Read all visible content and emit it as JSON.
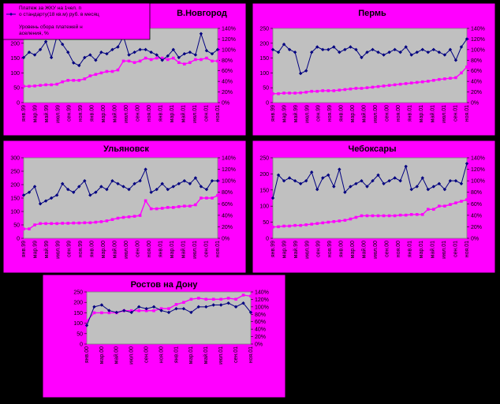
{
  "legend": {
    "series1": "Платеж за ЖКУ на 1чел. по стандарту(18 кв.м) руб. в месяц",
    "series2": "Уровень сбора платежей населения, %"
  },
  "y_left_ticks": [
    "0",
    "50",
    "100",
    "150",
    "200",
    "250"
  ],
  "y_right_ticks": [
    "0%",
    "20%",
    "40%",
    "60%",
    "80%",
    "100%",
    "120%",
    "140%"
  ],
  "colors": {
    "panel": "#ff00ff",
    "plot": "#c0c0c0",
    "series1": "#000080",
    "series2": "#ff00ff",
    "background": "#000000"
  },
  "chart_data": [
    {
      "type": "line",
      "title": "В.Новгород",
      "ylim": [
        0,
        250
      ],
      "y2lim": [
        0,
        1.4
      ],
      "x_tick_labels": [
        "янв.99",
        "мар.99",
        "май.99",
        "июл.99",
        "сен.99",
        "ноя.99",
        "янв.00",
        "мар.00",
        "май.00",
        "июл.00",
        "сен.00",
        "ноя.00",
        "янв.01",
        "мар.01",
        "май.01",
        "июл.01",
        "сен.01",
        "ноя.01"
      ],
      "series": [
        {
          "name": "Платеж за ЖКУ на 1чел. по стандарту(18 кв.м) руб. в месяц",
          "axis": "left",
          "values": [
            55,
            55,
            56,
            58,
            60,
            60,
            62,
            70,
            75,
            75,
            75,
            80,
            90,
            95,
            100,
            105,
            105,
            110,
            140,
            140,
            135,
            140,
            150,
            145,
            150,
            150,
            145,
            150,
            135,
            130,
            135,
            145,
            145,
            150,
            140,
            140
          ]
        },
        {
          "name": "Уровень сбора платежей населения, %",
          "axis": "right",
          "values": [
            0.85,
            0.95,
            0.9,
            1.0,
            1.15,
            0.85,
            1.25,
            1.1,
            0.95,
            0.75,
            0.7,
            0.85,
            0.9,
            0.8,
            0.95,
            0.92,
            1.0,
            1.05,
            1.25,
            0.9,
            0.95,
            1.0,
            1.0,
            0.95,
            0.9,
            0.8,
            0.88,
            1.0,
            0.85,
            0.92,
            0.95,
            0.9,
            1.3,
            0.98,
            0.92,
            1.0
          ]
        }
      ]
    },
    {
      "type": "line",
      "title": "Пермь",
      "ylim": [
        0,
        250
      ],
      "y2lim": [
        0,
        1.4
      ],
      "x_tick_labels": [
        "янв.99",
        "мар.99",
        "май.99",
        "июл.99",
        "сен.99",
        "ноя.99",
        "янв.00",
        "мар.00",
        "май.00",
        "июл.00",
        "сен.00",
        "ноя.00",
        "янв.01",
        "мар.01",
        "май.01",
        "июл.01",
        "сен.01",
        "ноя.01"
      ],
      "series": [
        {
          "name": "Платеж за ЖКУ на 1чел. по стандарту(18 кв.м) руб. в месяц",
          "axis": "left",
          "values": [
            30,
            30,
            32,
            32,
            32,
            33,
            35,
            38,
            38,
            40,
            40,
            40,
            42,
            44,
            46,
            48,
            48,
            50,
            52,
            54,
            56,
            58,
            60,
            62,
            64,
            66,
            68,
            70,
            72,
            75,
            78,
            80,
            82,
            84,
            100,
            120
          ]
        },
        {
          "name": "Уровень сбора платежей населения, %",
          "axis": "right",
          "values": [
            1.0,
            0.95,
            1.1,
            1.0,
            0.95,
            0.55,
            0.6,
            0.95,
            1.05,
            1.0,
            1.0,
            1.05,
            0.95,
            1.0,
            1.05,
            1.0,
            0.85,
            0.95,
            1.0,
            0.95,
            0.9,
            0.95,
            1.0,
            0.95,
            1.05,
            0.9,
            0.95,
            1.0,
            0.95,
            1.0,
            0.95,
            0.9,
            1.0,
            0.8,
            1.05,
            1.2
          ]
        }
      ]
    },
    {
      "type": "line",
      "title": "Ульяновск",
      "ylim": [
        0,
        300
      ],
      "y2lim": [
        0,
        1.4
      ],
      "x_tick_labels": [
        "янв.99",
        "мар.99",
        "май.99",
        "июл.99",
        "сен.99",
        "ноя.99",
        "янв.00",
        "мар.00",
        "май.00",
        "июл.00",
        "сен.00",
        "ноя.00",
        "янв.01",
        "мар.01",
        "май.01",
        "июл.01",
        "сен.01",
        "ноя.01"
      ],
      "series": [
        {
          "name": "Платеж за ЖКУ на 1чел. по стандарту(18 кв.м) руб. в месяц",
          "axis": "left",
          "values": [
            35,
            35,
            50,
            55,
            55,
            55,
            55,
            56,
            56,
            57,
            57,
            58,
            58,
            60,
            62,
            65,
            70,
            75,
            78,
            80,
            82,
            85,
            140,
            110,
            110,
            112,
            115,
            115,
            118,
            120,
            120,
            125,
            150,
            150,
            150,
            160
          ]
        },
        {
          "name": "Уровень сбора платежей населения, %",
          "axis": "right",
          "values": [
            0.75,
            0.8,
            0.9,
            0.6,
            0.65,
            0.7,
            0.75,
            0.95,
            0.85,
            0.8,
            0.9,
            1.0,
            0.75,
            0.8,
            0.9,
            0.85,
            1.0,
            0.95,
            0.9,
            0.85,
            0.95,
            1.0,
            1.2,
            0.8,
            0.85,
            0.95,
            0.85,
            0.9,
            0.95,
            1.0,
            0.95,
            1.05,
            0.9,
            0.85,
            1.0,
            1.0
          ]
        }
      ]
    },
    {
      "type": "line",
      "title": "Чебоксары",
      "ylim": [
        0,
        250
      ],
      "y2lim": [
        0,
        1.4
      ],
      "x_tick_labels": [
        "янв.99",
        "мар.99",
        "май.99",
        "июл.99",
        "сен.99",
        "ноя.99",
        "янв.00",
        "мар.00",
        "май.00",
        "июл.00",
        "сен.00",
        "ноя.00",
        "янв.01",
        "мар.01",
        "май.01",
        "июл.01",
        "сен.01",
        "ноя.01"
      ],
      "series": [
        {
          "name": "Платеж за ЖКУ на 1чел. по стандарту(18 кв.м) руб. в месяц",
          "axis": "left",
          "values": [
            35,
            36,
            38,
            38,
            40,
            40,
            42,
            44,
            46,
            48,
            50,
            52,
            54,
            56,
            60,
            65,
            70,
            70,
            70,
            70,
            70,
            70,
            70,
            72,
            72,
            74,
            74,
            74,
            90,
            90,
            100,
            100,
            105,
            110,
            115,
            120
          ]
        },
        {
          "name": "Уровень сбора платежей населения, %",
          "axis": "right",
          "values": [
            0.7,
            1.1,
            1.0,
            1.05,
            1.0,
            0.95,
            1.0,
            1.15,
            0.85,
            1.05,
            1.1,
            0.9,
            1.2,
            0.8,
            0.9,
            0.95,
            1.0,
            0.9,
            1.0,
            1.1,
            0.95,
            1.0,
            1.05,
            1.0,
            1.25,
            0.85,
            0.9,
            1.05,
            0.85,
            0.9,
            0.95,
            0.85,
            1.0,
            1.0,
            0.95,
            1.3
          ]
        }
      ]
    },
    {
      "type": "line",
      "title": "Ростов на Дону",
      "ylim": [
        0,
        250
      ],
      "y2lim": [
        0,
        1.4
      ],
      "x_tick_labels": [
        "янв.00",
        "мар.00",
        "май.00",
        "июл.00",
        "сен.00",
        "ноя.00",
        "янв.01",
        "мар.01",
        "май.01",
        "июл.01",
        "сен.01",
        "ноя.01"
      ],
      "series": [
        {
          "name": "Платеж за ЖКУ на 1чел. по стандарту(18 кв.м) руб. в месяц",
          "axis": "left",
          "values": [
            110,
            150,
            150,
            150,
            150,
            160,
            160,
            160,
            160,
            160,
            170,
            170,
            190,
            200,
            215,
            220,
            215,
            215,
            215,
            220,
            215,
            235,
            230
          ]
        },
        {
          "name": "Уровень сбора платежей населения, %",
          "axis": "right",
          "values": [
            0.5,
            1.0,
            1.05,
            0.9,
            0.85,
            0.9,
            0.85,
            1.0,
            0.95,
            1.0,
            0.9,
            0.85,
            0.95,
            0.95,
            0.85,
            1.0,
            1.0,
            1.05,
            1.05,
            1.1,
            1.0,
            1.1,
            0.85
          ]
        }
      ]
    }
  ]
}
